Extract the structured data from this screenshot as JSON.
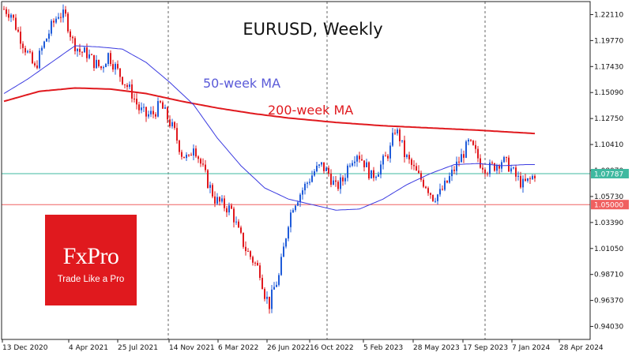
{
  "chart_data": {
    "type": "candlestick",
    "title": "EURUSD, Weekly",
    "x_labels": [
      "13 Dec 2020",
      "4 Apr 2021",
      "25 Jul 2021",
      "14 Nov 2021",
      "6 Mar 2022",
      "26 Jun 2022",
      "16 Oct 2022",
      "5 Feb 2023",
      "28 May 2023",
      "17 Sep 2023",
      "7 Jan 2024",
      "28 Apr 2024"
    ],
    "y_ticks": [
      "1.22110",
      "1.19770",
      "1.17430",
      "1.15090",
      "1.12750",
      "1.10410",
      "1.08070",
      "1.05730",
      "1.03390",
      "1.01050",
      "0.98710",
      "0.96370",
      "0.94030"
    ],
    "ylim": [
      0.9286,
      1.2328
    ],
    "current_price_label": "1.07787",
    "current_price": 1.07787,
    "level_label": "1.05000",
    "level": 1.05,
    "ma_labels": {
      "ma50": "50-week MA",
      "ma200": "200-week MA"
    },
    "close_path": [
      [
        0,
        1.226
      ],
      [
        3,
        1.222
      ],
      [
        6,
        1.205
      ],
      [
        10,
        1.186
      ],
      [
        13,
        1.172
      ],
      [
        16,
        1.19
      ],
      [
        20,
        1.21
      ],
      [
        23,
        1.222
      ],
      [
        26,
        1.219
      ],
      [
        29,
        1.197
      ],
      [
        32,
        1.188
      ],
      [
        35,
        1.186
      ],
      [
        38,
        1.178
      ],
      [
        41,
        1.173
      ],
      [
        44,
        1.185
      ],
      [
        48,
        1.17
      ],
      [
        51,
        1.16
      ],
      [
        54,
        1.15
      ],
      [
        57,
        1.136
      ],
      [
        60,
        1.13
      ],
      [
        63,
        1.132
      ],
      [
        66,
        1.14
      ],
      [
        69,
        1.128
      ],
      [
        72,
        1.115
      ],
      [
        75,
        1.096
      ],
      [
        78,
        1.09
      ],
      [
        80,
        1.105
      ],
      [
        83,
        1.087
      ],
      [
        86,
        1.07
      ],
      [
        89,
        1.055
      ],
      [
        92,
        1.05
      ],
      [
        96,
        1.045
      ],
      [
        99,
        1.025
      ],
      [
        102,
        1.01
      ],
      [
        105,
        1.0
      ],
      [
        108,
        0.99
      ],
      [
        110,
        0.97
      ],
      [
        112,
        0.96
      ],
      [
        114,
        0.975
      ],
      [
        116,
        0.985
      ],
      [
        118,
        1.01
      ],
      [
        120,
        1.035
      ],
      [
        122,
        1.05
      ],
      [
        125,
        1.06
      ],
      [
        128,
        1.07
      ],
      [
        131,
        1.08
      ],
      [
        134,
        1.085
      ],
      [
        137,
        1.078
      ],
      [
        140,
        1.065
      ],
      [
        143,
        1.072
      ],
      [
        146,
        1.09
      ],
      [
        149,
        1.097
      ],
      [
        152,
        1.088
      ],
      [
        155,
        1.075
      ],
      [
        158,
        1.082
      ],
      [
        161,
        1.092
      ],
      [
        163,
        1.1
      ],
      [
        165,
        1.118
      ],
      [
        167,
        1.11
      ],
      [
        169,
        1.095
      ],
      [
        172,
        1.085
      ],
      [
        175,
        1.075
      ],
      [
        178,
        1.068
      ],
      [
        181,
        1.057
      ],
      [
        184,
        1.06
      ],
      [
        187,
        1.07
      ],
      [
        190,
        1.082
      ],
      [
        193,
        1.093
      ],
      [
        196,
        1.105
      ],
      [
        198,
        1.1
      ],
      [
        201,
        1.088
      ],
      [
        204,
        1.082
      ],
      [
        207,
        1.085
      ],
      [
        210,
        1.09
      ],
      [
        213,
        1.085
      ],
      [
        216,
        1.075
      ],
      [
        219,
        1.068
      ],
      [
        222,
        1.072
      ],
      [
        224,
        1.078
      ]
    ],
    "ma50_path": [
      [
        0,
        1.15
      ],
      [
        10,
        1.163
      ],
      [
        20,
        1.178
      ],
      [
        30,
        1.193
      ],
      [
        40,
        1.192
      ],
      [
        50,
        1.19
      ],
      [
        60,
        1.178
      ],
      [
        70,
        1.16
      ],
      [
        80,
        1.14
      ],
      [
        90,
        1.11
      ],
      [
        100,
        1.085
      ],
      [
        110,
        1.065
      ],
      [
        120,
        1.055
      ],
      [
        130,
        1.05
      ],
      [
        140,
        1.045
      ],
      [
        150,
        1.046
      ],
      [
        160,
        1.055
      ],
      [
        170,
        1.068
      ],
      [
        180,
        1.078
      ],
      [
        190,
        1.086
      ],
      [
        200,
        1.087
      ],
      [
        210,
        1.085
      ],
      [
        220,
        1.086
      ],
      [
        224,
        1.086
      ]
    ],
    "ma200_path": [
      [
        0,
        1.143
      ],
      [
        15,
        1.152
      ],
      [
        30,
        1.155
      ],
      [
        45,
        1.154
      ],
      [
        60,
        1.15
      ],
      [
        75,
        1.143
      ],
      [
        90,
        1.137
      ],
      [
        105,
        1.132
      ],
      [
        120,
        1.128
      ],
      [
        140,
        1.124
      ],
      [
        160,
        1.121
      ],
      [
        180,
        1.119
      ],
      [
        200,
        1.117
      ],
      [
        224,
        1.114
      ]
    ]
  },
  "brand": {
    "name": "FxPro",
    "tagline": "Trade Like a Pro"
  },
  "colors": {
    "up": "#1f5bd9",
    "down": "#e0191e",
    "ma50": "#3a3ae0",
    "ma200": "#e0191e",
    "price_line": "#3fb9a0",
    "level_line": "#f06060",
    "grid": "#666666"
  }
}
